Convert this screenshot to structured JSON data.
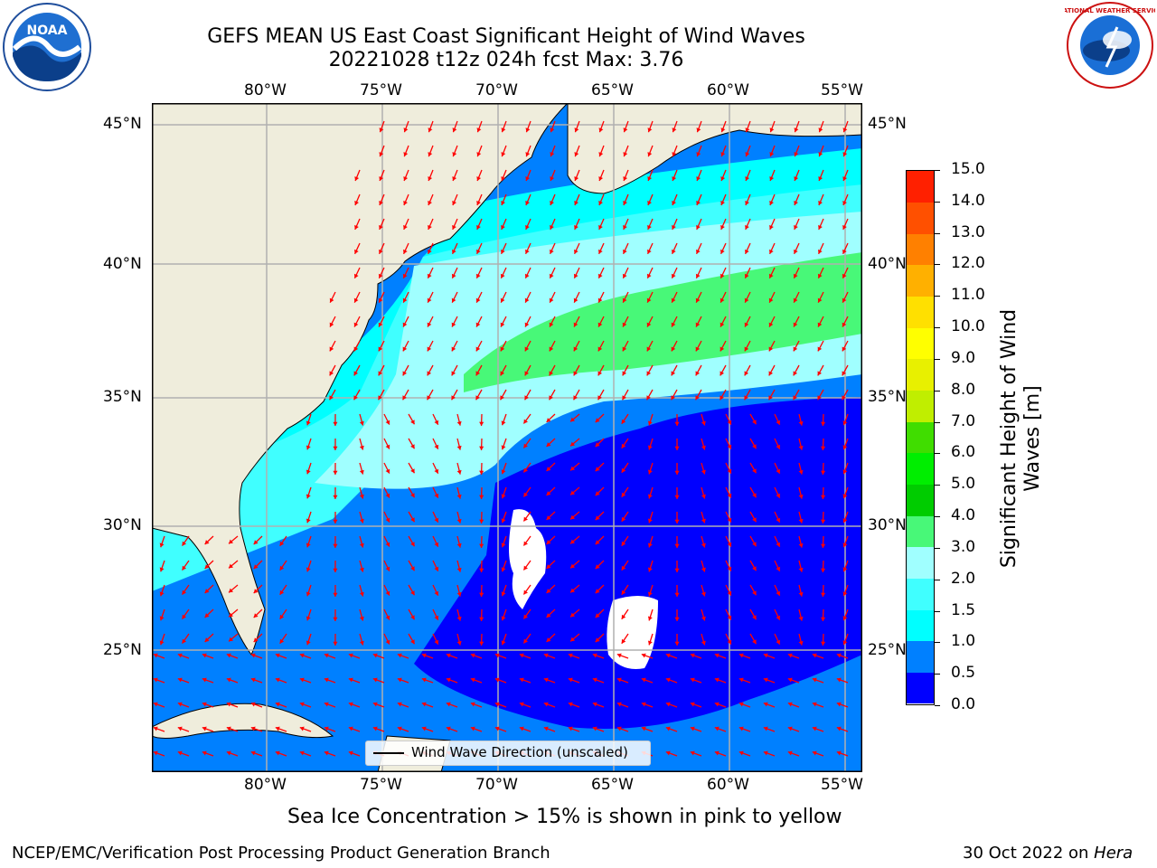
{
  "title_line1": "GEFS MEAN US East Coast Significant Height of Wind Waves",
  "title_line2": "20221028 t12z 024h fcst   Max: 3.76",
  "map": {
    "lon_ticks": [
      "80°W",
      "75°W",
      "70°W",
      "65°W",
      "60°W",
      "55°W"
    ],
    "lat_ticks": [
      "45°N",
      "40°N",
      "35°N",
      "30°N",
      "25°N"
    ],
    "legend_label": "Wind Wave Direction (unscaled)",
    "colors": {
      "land": "#efeddc",
      "arrow": "#ff0000",
      "grid": "#b0b0b0"
    }
  },
  "colorbar": {
    "label": "Significant Height of Wind Waves [m]",
    "ticks": [
      "0.0",
      "0.5",
      "1.0",
      "1.5",
      "2.0",
      "3.0",
      "4.0",
      "5.0",
      "6.0",
      "7.0",
      "8.0",
      "9.0",
      "10.0",
      "11.0",
      "12.0",
      "13.0",
      "14.0",
      "15.0"
    ],
    "colors": [
      "#0000ff",
      "#0080ff",
      "#00ffff",
      "#40ffff",
      "#a0ffff",
      "#48f878",
      "#00cc00",
      "#00ee00",
      "#40dd00",
      "#c0ee00",
      "#e8f000",
      "#ffff00",
      "#ffe000",
      "#ffb000",
      "#ff8000",
      "#ff5000",
      "#ff2000"
    ]
  },
  "note": "Sea Ice Concentration > 15% is shown in pink to yellow",
  "footer_left": "NCEP/EMC/Verification Post Processing Product Generation Branch",
  "footer_right_date": "30 Oct 2022 on ",
  "footer_right_host": "Hera",
  "logos": {
    "noaa_text": "NOAA",
    "nws_text": "NATIONAL WEATHER SERVICE"
  }
}
